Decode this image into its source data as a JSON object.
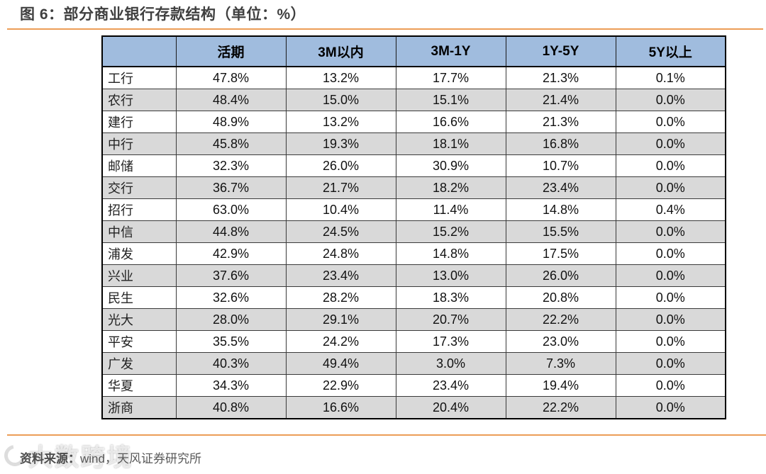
{
  "figure": {
    "title": "图 6：部分商业银行存款结构（单位：%）"
  },
  "chart_data": {
    "type": "table",
    "title": "部分商业银行存款结构",
    "unit": "%",
    "columns": [
      "",
      "活期",
      "3M以内",
      "3M-1Y",
      "1Y-5Y",
      "5Y以上"
    ],
    "rows": [
      [
        "工行",
        "47.8%",
        "13.2%",
        "17.7%",
        "21.3%",
        "0.1%"
      ],
      [
        "农行",
        "48.4%",
        "15.0%",
        "15.1%",
        "21.4%",
        "0.0%"
      ],
      [
        "建行",
        "48.9%",
        "13.2%",
        "16.6%",
        "21.3%",
        "0.0%"
      ],
      [
        "中行",
        "45.8%",
        "19.3%",
        "18.1%",
        "16.8%",
        "0.0%"
      ],
      [
        "邮储",
        "32.3%",
        "26.0%",
        "30.9%",
        "10.7%",
        "0.0%"
      ],
      [
        "交行",
        "36.7%",
        "21.7%",
        "18.2%",
        "23.4%",
        "0.0%"
      ],
      [
        "招行",
        "63.0%",
        "10.4%",
        "11.4%",
        "14.8%",
        "0.4%"
      ],
      [
        "中信",
        "44.8%",
        "24.5%",
        "15.2%",
        "15.5%",
        "0.0%"
      ],
      [
        "浦发",
        "42.9%",
        "24.8%",
        "14.8%",
        "17.5%",
        "0.0%"
      ],
      [
        "兴业",
        "37.6%",
        "23.4%",
        "13.0%",
        "26.0%",
        "0.0%"
      ],
      [
        "民生",
        "32.6%",
        "28.2%",
        "18.3%",
        "20.8%",
        "0.0%"
      ],
      [
        "光大",
        "28.0%",
        "29.1%",
        "20.7%",
        "22.2%",
        "0.0%"
      ],
      [
        "平安",
        "35.5%",
        "24.2%",
        "17.3%",
        "23.0%",
        "0.0%"
      ],
      [
        "广发",
        "40.3%",
        "49.4%",
        "3.0%",
        "7.3%",
        "0.0%"
      ],
      [
        "华夏",
        "34.3%",
        "22.9%",
        "23.4%",
        "19.4%",
        "0.0%"
      ],
      [
        "浙商",
        "40.8%",
        "16.6%",
        "20.4%",
        "22.2%",
        "0.0%"
      ]
    ]
  },
  "footer": {
    "source_label": "资料来源：",
    "source_value": "wind，天风证券研究所"
  },
  "watermark": {
    "text": "大数跨境"
  },
  "colors": {
    "accent_rule": "#EC9D57",
    "header_bg": "#A0BCDE",
    "stripe_bg": "#D9D9D9",
    "title_text": "#3F3F3F",
    "footer_text": "#595959"
  }
}
